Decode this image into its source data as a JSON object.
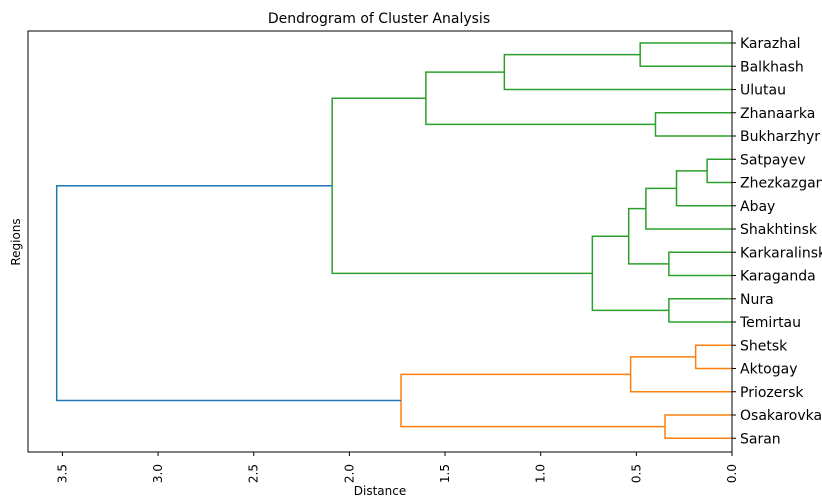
{
  "chart_data": {
    "type": "dendrogram",
    "orientation": "left",
    "title": "Dendrogram of Cluster Analysis",
    "xlabel": "Distance",
    "ylabel": "Regions",
    "xlim": [
      3.68,
      0.0
    ],
    "xticks": [
      3.5,
      3.0,
      2.5,
      2.0,
      1.5,
      1.0,
      0.5,
      0.0
    ],
    "xtick_labels": [
      "3.5",
      "3.0",
      "2.5",
      "2.0",
      "1.5",
      "1.0",
      "0.5",
      "0.0"
    ],
    "grid": false,
    "colors": {
      "cluster_1": "#2ca02c",
      "cluster_2": "#ff7f0e",
      "above_threshold": "#1f77b4"
    },
    "leaves": [
      "Karazhal",
      "Balkhash",
      "Ulutau",
      "Zhanaarka",
      "Bukharzhyr",
      "Satpayev",
      "Zhezkazgan",
      "Abay",
      "Shakhtinsk",
      "Karkaralinsk",
      "Karaganda",
      "Nura",
      "Temirtau",
      "Shetsk",
      "Aktogay",
      "Priozersk",
      "Osakarovka",
      "Saran"
    ],
    "merges": [
      {
        "a": "L0",
        "b": "L1",
        "height": 0.48,
        "cluster": "cluster_1"
      },
      {
        "a": "M0",
        "b": "L2",
        "height": 1.19,
        "cluster": "cluster_1"
      },
      {
        "a": "L3",
        "b": "L4",
        "height": 0.4,
        "cluster": "cluster_1"
      },
      {
        "a": "M1",
        "b": "M2",
        "height": 1.6,
        "cluster": "cluster_1"
      },
      {
        "a": "L5",
        "b": "L6",
        "height": 0.13,
        "cluster": "cluster_1"
      },
      {
        "a": "M4",
        "b": "L7",
        "height": 0.29,
        "cluster": "cluster_1"
      },
      {
        "a": "M5",
        "b": "L8",
        "height": 0.45,
        "cluster": "cluster_1"
      },
      {
        "a": "L9",
        "b": "L10",
        "height": 0.33,
        "cluster": "cluster_1"
      },
      {
        "a": "M6",
        "b": "M7",
        "height": 0.54,
        "cluster": "cluster_1"
      },
      {
        "a": "L11",
        "b": "L12",
        "height": 0.33,
        "cluster": "cluster_1"
      },
      {
        "a": "M8",
        "b": "M9",
        "height": 0.73,
        "cluster": "cluster_1"
      },
      {
        "a": "M3",
        "b": "M10",
        "height": 2.09,
        "cluster": "cluster_1"
      },
      {
        "a": "L13",
        "b": "L14",
        "height": 0.19,
        "cluster": "cluster_2"
      },
      {
        "a": "M12",
        "b": "L15",
        "height": 0.53,
        "cluster": "cluster_2"
      },
      {
        "a": "L16",
        "b": "L17",
        "height": 0.35,
        "cluster": "cluster_2"
      },
      {
        "a": "M13",
        "b": "M14",
        "height": 1.73,
        "cluster": "cluster_2"
      },
      {
        "a": "M11",
        "b": "M15",
        "height": 3.53,
        "cluster": "above_threshold"
      }
    ]
  }
}
